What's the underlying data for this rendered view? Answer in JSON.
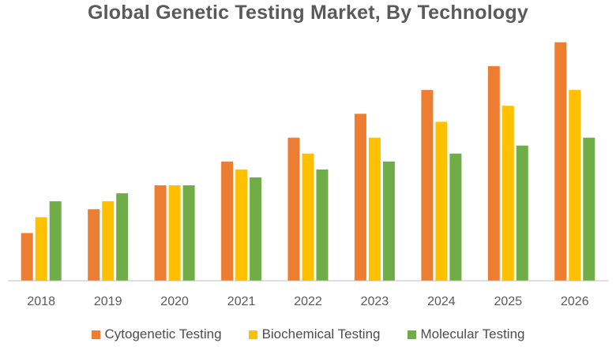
{
  "chart_data": {
    "type": "bar",
    "title": "Global Genetic Testing Market, By Technology",
    "xlabel": "",
    "ylabel": "",
    "categories": [
      "2018",
      "2019",
      "2020",
      "2021",
      "2022",
      "2023",
      "2024",
      "2025",
      "2026"
    ],
    "ylim": [
      0,
      100
    ],
    "grid": false,
    "legend_position": "bottom",
    "series": [
      {
        "name": "Cytogenetic Testing",
        "color": "#ed7d31",
        "values": [
          18,
          27,
          36,
          45,
          54,
          63,
          72,
          81,
          90
        ]
      },
      {
        "name": "Biochemical Testing",
        "color": "#ffc000",
        "values": [
          24,
          30,
          36,
          42,
          48,
          54,
          60,
          66,
          72
        ]
      },
      {
        "name": "Molecular Testing",
        "color": "#70ad47",
        "values": [
          30,
          33,
          36,
          39,
          42,
          45,
          48,
          51,
          54
        ]
      }
    ]
  }
}
